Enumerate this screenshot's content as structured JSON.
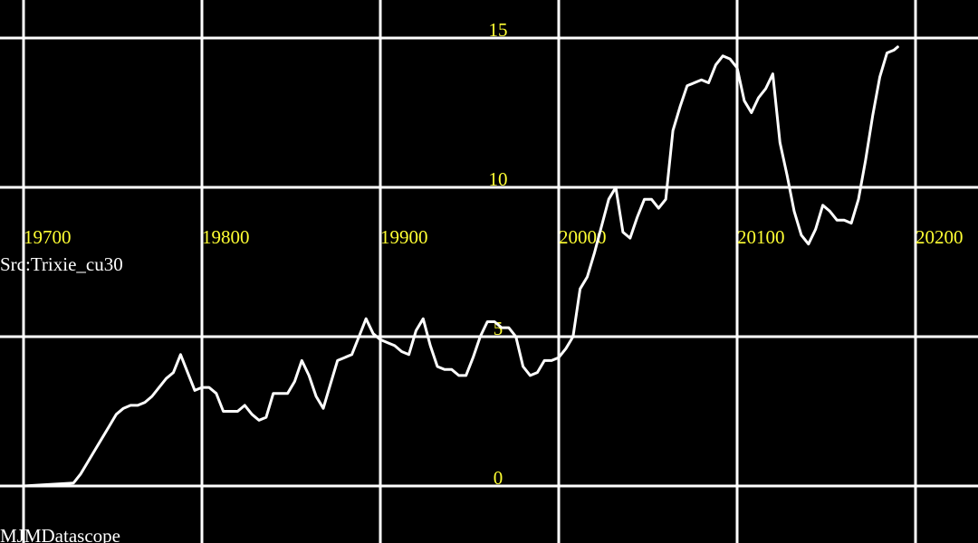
{
  "chart_data": {
    "type": "line",
    "title": "",
    "source_label": "Src:Trixie_cu30",
    "watermark": "MJMDatascope",
    "xlabel": "",
    "ylabel": "",
    "x_ticks": [
      19700,
      19800,
      19900,
      20000,
      20100,
      20200
    ],
    "y_ticks": [
      0,
      5,
      10,
      15
    ],
    "xlim": [
      19700,
      20230
    ],
    "ylim": [
      0,
      15
    ],
    "grid": true,
    "colors": {
      "background": "#000000",
      "grid": "#ffffff",
      "line": "#ffffff",
      "tick_labels": "#ffff33",
      "text": "#ffffff"
    },
    "series": [
      {
        "x": [
          19700,
          19728,
          19732,
          19736,
          19740,
          19744,
          19748,
          19752,
          19756,
          19760,
          19764,
          19768,
          19772,
          19776,
          19780,
          19784,
          19788,
          19792,
          19796,
          19800,
          19804,
          19808,
          19812,
          19816,
          19820,
          19824,
          19828,
          19832,
          19836,
          19840,
          19844,
          19848,
          19852,
          19856,
          19860,
          19864,
          19868,
          19872,
          19876,
          19880,
          19884,
          19888,
          19892,
          19896,
          19900,
          19904,
          19908,
          19912,
          19916,
          19920,
          19924,
          19928,
          19932,
          19936,
          19940,
          19944,
          19948,
          19952,
          19956,
          19960,
          19964,
          19968,
          19972,
          19976,
          19980,
          19984,
          19988,
          19992,
          19996,
          20000,
          20004,
          20008,
          20012,
          20016,
          20020,
          20024,
          20028,
          20032,
          20036,
          20040,
          20044,
          20048,
          20052,
          20056,
          20060,
          20064,
          20068,
          20072,
          20076,
          20080,
          20084,
          20088,
          20092,
          20096,
          20100,
          20104,
          20108,
          20112,
          20116,
          20120,
          20124,
          20128,
          20132,
          20136,
          20140,
          20144,
          20148,
          20152,
          20156,
          20160,
          20164,
          20168,
          20172,
          20176,
          20180,
          20184,
          20188,
          20190
        ],
        "y": [
          0.0,
          0.1,
          0.4,
          0.8,
          1.2,
          1.6,
          2.0,
          2.4,
          2.6,
          2.7,
          2.7,
          2.8,
          3.0,
          3.3,
          3.6,
          3.8,
          4.4,
          3.8,
          3.2,
          3.3,
          3.3,
          3.1,
          2.5,
          2.5,
          2.5,
          2.7,
          2.4,
          2.2,
          2.3,
          3.1,
          3.1,
          3.1,
          3.5,
          4.2,
          3.7,
          3.0,
          2.6,
          3.4,
          4.2,
          4.3,
          4.4,
          5.0,
          5.6,
          5.1,
          4.9,
          4.8,
          4.7,
          4.5,
          4.4,
          5.2,
          5.6,
          4.7,
          4.0,
          3.9,
          3.9,
          3.7,
          3.7,
          4.3,
          5.0,
          5.5,
          5.5,
          5.3,
          5.3,
          5.0,
          4.0,
          3.7,
          3.8,
          4.2,
          4.2,
          4.3,
          4.6,
          5.0,
          6.6,
          7.0,
          7.8,
          8.7,
          9.6,
          10.0,
          8.5,
          8.3,
          9.0,
          9.6,
          9.6,
          9.3,
          9.6,
          11.9,
          12.7,
          13.4,
          13.5,
          13.6,
          13.5,
          14.1,
          14.4,
          14.3,
          14.0,
          12.9,
          12.5,
          13.0,
          13.3,
          13.8,
          11.5,
          10.4,
          9.2,
          8.4,
          8.1,
          8.6,
          9.4,
          9.2,
          8.9,
          8.9,
          8.8,
          9.6,
          10.9,
          12.4,
          13.7,
          14.5,
          14.6,
          14.7
        ]
      }
    ]
  }
}
